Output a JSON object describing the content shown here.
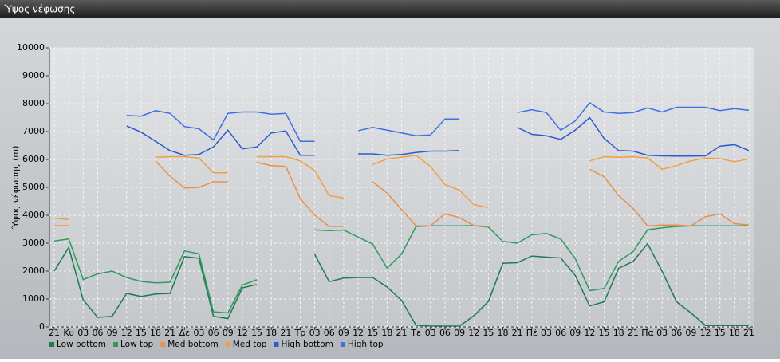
{
  "chart_data": {
    "type": "line",
    "title": "Ύψος νέφωσης",
    "y_label": "Ύψος νέφωσης (m)",
    "categories": [
      "21",
      "Κυ",
      "03",
      "06",
      "09",
      "12",
      "15",
      "18",
      "21",
      "Δε",
      "03",
      "06",
      "09",
      "12",
      "15",
      "18",
      "21",
      "Τρ",
      "03",
      "06",
      "09",
      "12",
      "15",
      "18",
      "21",
      "Τε",
      "03",
      "06",
      "09",
      "12",
      "15",
      "18",
      "21",
      "Πέ",
      "03",
      "06",
      "09",
      "12",
      "15",
      "18",
      "21",
      "Πα",
      "03",
      "06",
      "09",
      "12",
      "15",
      "18",
      "21"
    ],
    "ylim": [
      0,
      10000
    ],
    "yticks": [
      0,
      1000,
      2000,
      3000,
      4000,
      5000,
      6000,
      7000,
      8000,
      9000,
      10000
    ],
    "grid": true,
    "legend": "bottom-left",
    "series": [
      {
        "name": "Low bottom",
        "color": "#1f7a4d",
        "values": [
          2000,
          2850,
          970,
          340,
          380,
          1200,
          1090,
          1180,
          1200,
          2520,
          2460,
          380,
          300,
          1400,
          1520,
          null,
          null,
          null,
          2600,
          1620,
          1750,
          1770,
          1770,
          1430,
          950,
          60,
          30,
          30,
          30,
          400,
          910,
          2280,
          2300,
          2540,
          2500,
          2470,
          1850,
          750,
          900,
          2100,
          2350,
          2980,
          2000,
          900,
          500,
          50,
          50,
          50,
          50
        ]
      },
      {
        "name": "Low top",
        "color": "#2e9a60",
        "values": [
          3080,
          3150,
          1700,
          1900,
          2000,
          1770,
          1630,
          1580,
          1600,
          2720,
          2620,
          540,
          500,
          1500,
          1690,
          null,
          null,
          null,
          3480,
          3450,
          3470,
          3220,
          2970,
          2110,
          2610,
          3600,
          3620,
          3620,
          3620,
          3630,
          3580,
          3060,
          3000,
          3300,
          3350,
          3150,
          2450,
          1300,
          1380,
          2350,
          2700,
          3480,
          3550,
          3600,
          3620,
          3620,
          3620,
          3620,
          3620
        ]
      },
      {
        "name": "Med bottom",
        "color": "#e8904a",
        "values": [
          3630,
          3630,
          null,
          null,
          null,
          null,
          null,
          5950,
          5400,
          4980,
          5000,
          5200,
          5200,
          null,
          5900,
          5780,
          5750,
          4600,
          4000,
          3600,
          3600,
          null,
          5200,
          4800,
          4200,
          3620,
          3620,
          4050,
          3920,
          3630,
          3600,
          null,
          null,
          null,
          null,
          null,
          null,
          5650,
          5380,
          4700,
          4250,
          3620,
          3650,
          3650,
          3620,
          3950,
          4050,
          3700,
          3650
        ]
      },
      {
        "name": "Med top",
        "color": "#f0a040",
        "values": [
          3900,
          3850,
          null,
          null,
          null,
          null,
          null,
          6080,
          6100,
          6100,
          6050,
          5520,
          5520,
          null,
          6100,
          6100,
          6100,
          5950,
          5600,
          4700,
          4620,
          null,
          5820,
          6020,
          6080,
          6150,
          5750,
          5100,
          4900,
          4380,
          4280,
          null,
          null,
          null,
          null,
          null,
          null,
          5950,
          6100,
          6080,
          6100,
          6050,
          5650,
          5780,
          5950,
          6050,
          6030,
          5920,
          6020
        ]
      },
      {
        "name": "High bottom",
        "color": "#2b5bd0",
        "values": [
          null,
          null,
          null,
          null,
          null,
          7200,
          6980,
          6650,
          6320,
          6150,
          6180,
          6450,
          7050,
          6380,
          6450,
          6950,
          7020,
          6150,
          6150,
          null,
          null,
          6200,
          6200,
          6150,
          6180,
          6250,
          6300,
          6300,
          6320,
          null,
          null,
          null,
          7150,
          6900,
          6850,
          6720,
          7050,
          7500,
          6750,
          6320,
          6300,
          6150,
          6130,
          6120,
          6120,
          6130,
          6480,
          6530,
          6320
        ]
      },
      {
        "name": "High top",
        "color": "#3f6fe6",
        "values": [
          null,
          null,
          null,
          null,
          null,
          7580,
          7550,
          7750,
          7650,
          7180,
          7100,
          6700,
          7650,
          7700,
          7700,
          7620,
          7650,
          6650,
          6650,
          null,
          null,
          7030,
          7150,
          7050,
          6950,
          6850,
          6880,
          7450,
          7450,
          null,
          null,
          null,
          7680,
          7780,
          7680,
          7050,
          7380,
          8030,
          7700,
          7650,
          7680,
          7850,
          7700,
          7870,
          7870,
          7870,
          7750,
          7820,
          7760
        ]
      }
    ]
  }
}
